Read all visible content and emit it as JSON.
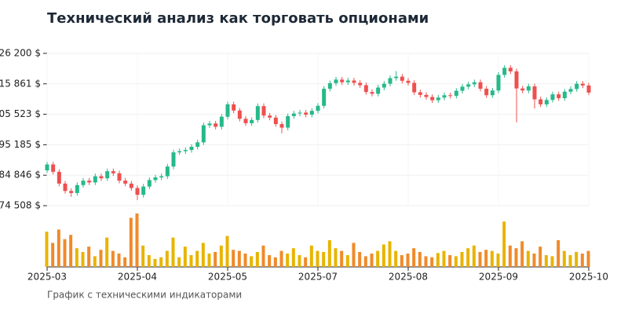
{
  "chart_data": {
    "type": "candlestick",
    "title": "Технический анализ как торговать опционами",
    "footer": "График с техническими индикаторами",
    "categories": [
      "2025-03",
      null,
      null,
      null,
      null,
      null,
      null,
      null,
      null,
      null,
      null,
      null,
      null,
      null,
      null,
      "2025-04",
      null,
      null,
      null,
      null,
      null,
      null,
      null,
      null,
      null,
      null,
      null,
      null,
      null,
      null,
      "2025-05",
      null,
      null,
      null,
      null,
      null,
      null,
      null,
      null,
      null,
      null,
      null,
      null,
      null,
      null,
      "2025-07",
      null,
      null,
      null,
      null,
      null,
      null,
      null,
      null,
      null,
      null,
      null,
      null,
      null,
      null,
      "2025-08",
      null,
      null,
      null,
      null,
      null,
      null,
      null,
      null,
      null,
      null,
      null,
      null,
      null,
      null,
      "2025-09",
      null,
      null,
      null,
      null,
      null,
      null,
      null,
      null,
      null,
      null,
      null,
      null,
      null,
      null,
      "2025-10"
    ],
    "open": [
      186500,
      188500,
      186000,
      182000,
      179500,
      178800,
      181500,
      183000,
      182400,
      184500,
      183800,
      186200,
      185500,
      183000,
      182000,
      180500,
      178200,
      181000,
      183200,
      184100,
      184500,
      187800,
      192600,
      193000,
      193400,
      194500,
      196000,
      201800,
      202400,
      201300,
      204700,
      208900,
      206800,
      204000,
      202500,
      203600,
      208300,
      205100,
      204400,
      202200,
      201000,
      204900,
      205800,
      206100,
      205400,
      206700,
      208400,
      214200,
      216100,
      217300,
      216400,
      217000,
      216200,
      215400,
      213100,
      212500,
      214600,
      215900,
      217800,
      218300,
      216900,
      216200,
      213000,
      212100,
      211400,
      210300,
      211200,
      212000,
      211800,
      213500,
      214900,
      215700,
      216400,
      214200,
      212000,
      213600,
      218900,
      221300,
      220100,
      214300,
      213600,
      215000,
      210600,
      208900,
      210400,
      212300,
      211000,
      213200,
      214100,
      215900,
      215300
    ],
    "high": [
      189400,
      189400,
      186900,
      182900,
      180400,
      182400,
      183900,
      183900,
      185400,
      185400,
      187100,
      187100,
      186400,
      183900,
      182900,
      181400,
      181900,
      184100,
      185000,
      185400,
      188700,
      193500,
      193900,
      194300,
      195400,
      196900,
      202700,
      203300,
      203300,
      205600,
      209800,
      209800,
      207700,
      204900,
      204500,
      209200,
      209200,
      206000,
      205300,
      203100,
      205800,
      206700,
      207000,
      207000,
      207600,
      209300,
      215100,
      217000,
      218200,
      218200,
      217900,
      217900,
      217100,
      216300,
      214000,
      215500,
      216800,
      218700,
      220200,
      219200,
      217800,
      217100,
      213900,
      213000,
      212300,
      212100,
      212900,
      212900,
      214400,
      215800,
      216600,
      217300,
      217300,
      215100,
      214500,
      219800,
      222200,
      222200,
      221000,
      215200,
      215900,
      215900,
      211500,
      211300,
      213200,
      213200,
      214100,
      215000,
      216800,
      216800,
      216200
    ],
    "low": [
      185600,
      185100,
      181100,
      178600,
      177500,
      177900,
      180600,
      181500,
      181500,
      182900,
      182900,
      184600,
      182100,
      181100,
      179600,
      176400,
      177300,
      180100,
      182300,
      183200,
      183600,
      186900,
      191700,
      192100,
      192500,
      193600,
      195100,
      200900,
      200400,
      200400,
      203800,
      205900,
      203100,
      201600,
      201600,
      202700,
      204200,
      203500,
      201300,
      199100,
      200100,
      204000,
      204900,
      204500,
      204500,
      205800,
      207500,
      213300,
      215200,
      215500,
      215500,
      215300,
      214500,
      212200,
      211600,
      211600,
      213700,
      215000,
      216900,
      216000,
      215300,
      212100,
      211200,
      210500,
      209400,
      209400,
      210300,
      210900,
      210900,
      212600,
      214000,
      214800,
      213300,
      211100,
      211100,
      212700,
      218000,
      219200,
      202800,
      212700,
      212700,
      207500,
      208000,
      208000,
      209500,
      210100,
      210100,
      212300,
      213200,
      214400,
      212000
    ],
    "close": [
      188500,
      186000,
      182000,
      179500,
      178800,
      181500,
      183000,
      182400,
      184500,
      183800,
      186200,
      185500,
      183000,
      182000,
      180500,
      178200,
      181000,
      183200,
      184100,
      184500,
      187800,
      192600,
      193000,
      193400,
      194500,
      196000,
      201800,
      202400,
      201300,
      204700,
      208900,
      206800,
      204000,
      202500,
      203600,
      208300,
      205100,
      204400,
      202200,
      201000,
      204900,
      205800,
      206100,
      205400,
      206700,
      208400,
      214200,
      216100,
      217300,
      216400,
      217000,
      216200,
      215400,
      213100,
      212500,
      214600,
      215900,
      217800,
      218300,
      216900,
      216200,
      213000,
      212100,
      211400,
      210300,
      211200,
      212000,
      211800,
      213500,
      214900,
      215700,
      216400,
      214200,
      212000,
      213600,
      218900,
      221300,
      220100,
      214300,
      213600,
      215000,
      210600,
      208900,
      210400,
      212300,
      211000,
      213200,
      214100,
      215900,
      215300,
      212900
    ],
    "volume": [
      66,
      45,
      70,
      52,
      60,
      35,
      28,
      38,
      20,
      32,
      55,
      30,
      25,
      18,
      92,
      100,
      40,
      22,
      15,
      18,
      30,
      55,
      18,
      38,
      22,
      30,
      45,
      25,
      28,
      40,
      58,
      32,
      30,
      25,
      20,
      28,
      40,
      22,
      18,
      30,
      25,
      35,
      22,
      18,
      40,
      30,
      28,
      50,
      35,
      30,
      22,
      45,
      28,
      20,
      25,
      30,
      42,
      48,
      30,
      22,
      25,
      35,
      28,
      20,
      18,
      26,
      30,
      22,
      20,
      28,
      35,
      40,
      28,
      32,
      30,
      25,
      85,
      40,
      35,
      48,
      30,
      25,
      38,
      22,
      20,
      50,
      30,
      22,
      28,
      25,
      30
    ],
    "volume_lim": [
      0,
      100
    ],
    "up_color": "#26b98a",
    "down_color": "#ef4f4f",
    "volume_up_color": "#e8b400",
    "volume_down_color": "#f08a2a",
    "ylim": [
      174508,
      226200
    ],
    "yticks": [
      {
        "value": 174508,
        "label": "174 508 $"
      },
      {
        "value": 184846,
        "label": "184 846 $"
      },
      {
        "value": 195185,
        "label": "195 185 $"
      },
      {
        "value": 205523,
        "label": "205 523 $"
      },
      {
        "value": 215861,
        "label": "215 861 $"
      },
      {
        "value": 226200,
        "label": "226 200 $"
      }
    ],
    "grid": true
  }
}
